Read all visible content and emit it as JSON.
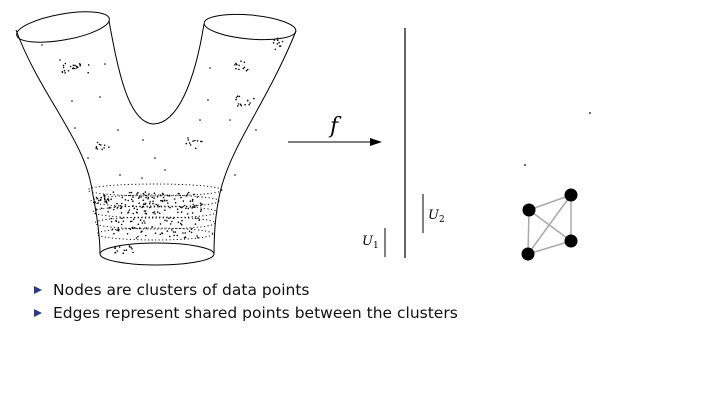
{
  "diagram": {
    "function_label": "f",
    "interval_labels": [
      {
        "main": "U",
        "sub": "1"
      },
      {
        "main": "U",
        "sub": "2"
      }
    ],
    "graph": {
      "nodes": [
        "n1",
        "n2",
        "n3",
        "n4"
      ],
      "edges": [
        [
          "n1",
          "n2"
        ],
        [
          "n2",
          "n3"
        ],
        [
          "n3",
          "n4"
        ],
        [
          "n1",
          "n3"
        ],
        [
          "n2",
          "n4"
        ]
      ]
    }
  },
  "bullets": [
    "Nodes are clusters of data points",
    "Edges represent shared points between the clusters"
  ],
  "colors": {
    "bullet_marker": "#2b3a8c",
    "ink": "#000000",
    "edge": "#aaaaaa"
  }
}
